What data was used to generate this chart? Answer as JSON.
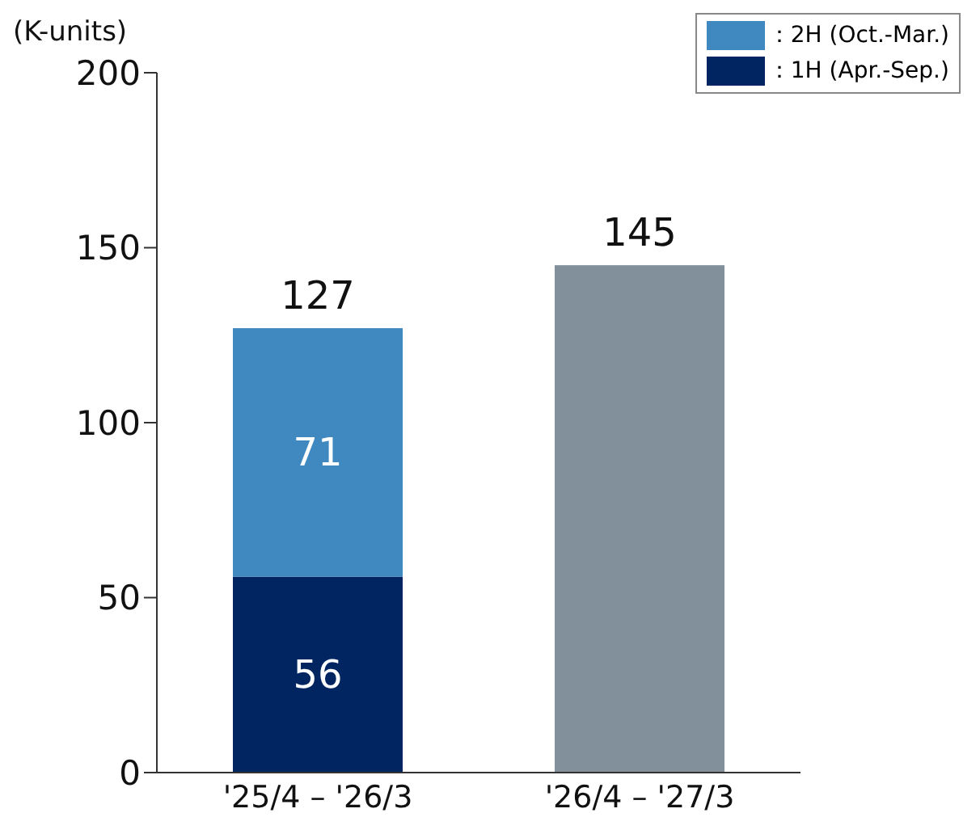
{
  "chart_data": {
    "type": "bar",
    "ylabel": "(K-units)",
    "categories": [
      "'25/4 – '26/3",
      "'26/4 – '27/3"
    ],
    "series": [
      {
        "name": "：1H (Apr.-Sep.)",
        "color": "#002560",
        "values": [
          56,
          null
        ],
        "value_labels": [
          "56",
          null
        ]
      },
      {
        "name": "：2H (Oct.-Mar.)",
        "color": "#3f88c0",
        "values": [
          71,
          null
        ],
        "value_labels": [
          "71",
          null
        ]
      },
      {
        "color": "#82909c",
        "values": [
          null,
          145
        ]
      }
    ],
    "stacked": true,
    "totals": [
      "127",
      "145"
    ],
    "ylim": [
      0,
      200
    ],
    "yticks": [
      0,
      50,
      100,
      150,
      200
    ],
    "grid": false,
    "legend": "top right"
  }
}
